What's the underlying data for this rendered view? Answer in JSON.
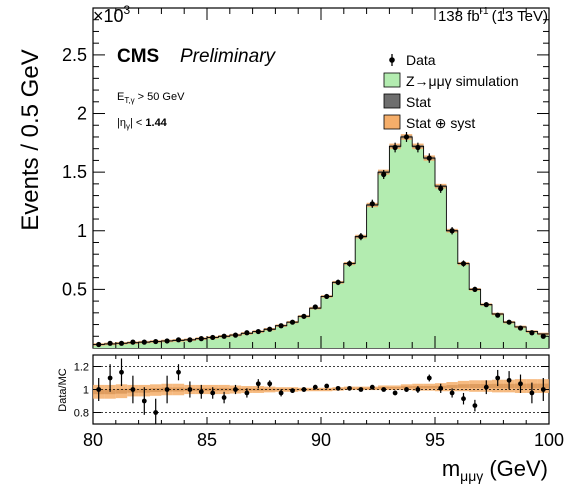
{
  "chart_data": [
    {
      "type": "histogram",
      "title": "",
      "header_left": "CMS",
      "header_status": "Preliminary",
      "luminosity_number": "138 fb",
      "luminosity_exponent": "-1",
      "luminosity_energy": "(13 TeV)",
      "ylabel": "Events / 0.5 GeV",
      "y_multiplier_base": "×10",
      "y_multiplier_exponent": "3",
      "xlabel_main": "m",
      "xlabel_sub": "μμγ",
      "xlabel_unit": "(GeV)",
      "xlim": [
        80,
        100
      ],
      "ylim": [
        0,
        2.9
      ],
      "y_tick_labels": [
        "0.5",
        "1",
        "1.5",
        "2",
        "2.5"
      ],
      "y_tick_values": [
        0.5,
        1.0,
        1.5,
        2.0,
        2.5
      ],
      "x_tick_labels": [
        "80",
        "85",
        "90",
        "95",
        "100"
      ],
      "x_tick_values": [
        80,
        85,
        90,
        95,
        100
      ],
      "selection_cut_1": "E_T,γ > 50 GeV",
      "selection_cut_2": "|η_γ| < 1.44",
      "legend": {
        "placement": "top-right",
        "entries": [
          {
            "name": "Data",
            "kind": "marker",
            "color": "#000000"
          },
          {
            "name": "Z→μμγ simulation",
            "kind": "fill",
            "color": "#b3ecb0"
          },
          {
            "name": "Stat",
            "kind": "fill",
            "color": "#6e6e6e"
          },
          {
            "name": "Stat ⊕ syst",
            "kind": "fill",
            "color": "#f5ae6a"
          }
        ]
      },
      "bin_width": 0.5,
      "bin_edges_start": 80,
      "mc_values": [
        0.03,
        0.035,
        0.04,
        0.045,
        0.05,
        0.055,
        0.06,
        0.065,
        0.07,
        0.08,
        0.09,
        0.1,
        0.11,
        0.125,
        0.14,
        0.16,
        0.19,
        0.22,
        0.27,
        0.34,
        0.44,
        0.56,
        0.72,
        0.95,
        1.22,
        1.5,
        1.72,
        1.8,
        1.72,
        1.62,
        1.38,
        1.0,
        0.72,
        0.5,
        0.37,
        0.29,
        0.22,
        0.18,
        0.14,
        0.12
      ],
      "data_values": [
        0.03,
        0.04,
        0.04,
        0.05,
        0.05,
        0.055,
        0.06,
        0.07,
        0.07,
        0.08,
        0.09,
        0.1,
        0.11,
        0.13,
        0.14,
        0.16,
        0.19,
        0.22,
        0.27,
        0.35,
        0.44,
        0.56,
        0.72,
        0.95,
        1.23,
        1.48,
        1.71,
        1.8,
        1.71,
        1.62,
        1.36,
        1.0,
        0.72,
        0.5,
        0.37,
        0.28,
        0.22,
        0.17,
        0.13,
        0.1
      ],
      "fill_color": "#b3ecb0",
      "stat_color": "#6e6e6e",
      "syst_color": "#f5ae6a"
    },
    {
      "type": "ratio",
      "ylabel": "Data/MC",
      "ylim": [
        0.7,
        1.3
      ],
      "y_tick_labels": [
        "0.8",
        "1",
        "1.2"
      ],
      "y_tick_values": [
        0.8,
        1.0,
        1.2
      ],
      "reference_lines": [
        0.8,
        1.0,
        1.2
      ],
      "x": [
        80.25,
        80.75,
        81.25,
        81.75,
        82.25,
        82.75,
        83.25,
        83.75,
        84.25,
        84.75,
        85.25,
        85.75,
        86.25,
        86.75,
        87.25,
        87.75,
        88.25,
        88.75,
        89.25,
        89.75,
        90.25,
        90.75,
        91.25,
        91.75,
        92.25,
        92.75,
        93.25,
        93.75,
        94.25,
        94.75,
        95.25,
        95.75,
        96.25,
        96.75,
        97.25,
        97.75,
        98.25,
        98.75,
        99.25,
        99.75
      ],
      "ratio_values": [
        1.0,
        1.1,
        1.15,
        1.0,
        0.9,
        0.8,
        1.0,
        1.15,
        1.0,
        0.98,
        0.97,
        0.93,
        1.0,
        0.97,
        1.05,
        1.05,
        0.97,
        0.99,
        1.0,
        1.02,
        1.03,
        1.01,
        1.01,
        1.0,
        1.02,
        1.0,
        0.97,
        1.0,
        1.0,
        1.1,
        1.01,
        0.97,
        0.92,
        0.86,
        1.02,
        1.1,
        1.08,
        1.05,
        0.97,
        1.0
      ],
      "ratio_errors": [
        0.1,
        0.12,
        0.12,
        0.12,
        0.12,
        0.12,
        0.12,
        0.07,
        0.07,
        0.06,
        0.05,
        0.05,
        0.04,
        0.04,
        0.04,
        0.03,
        0.03,
        0.02,
        0.02,
        0.02,
        0.01,
        0.01,
        0.01,
        0.01,
        0.01,
        0.01,
        0.02,
        0.02,
        0.03,
        0.03,
        0.04,
        0.04,
        0.05,
        0.05,
        0.06,
        0.07,
        0.08,
        0.08,
        0.09,
        0.1
      ],
      "band_half_width": [
        0.06,
        0.06,
        0.06,
        0.05,
        0.05,
        0.05,
        0.05,
        0.05,
        0.04,
        0.04,
        0.04,
        0.04,
        0.035,
        0.03,
        0.03,
        0.025,
        0.02,
        0.02,
        0.015,
        0.015,
        0.015,
        0.015,
        0.015,
        0.015,
        0.015,
        0.02,
        0.02,
        0.025,
        0.03,
        0.03,
        0.035,
        0.04,
        0.045,
        0.05,
        0.05,
        0.055,
        0.055,
        0.06,
        0.06,
        0.06
      ],
      "band_offset": [
        -0.02,
        -0.02,
        -0.015,
        -0.01,
        -0.01,
        -0.005,
        0.0,
        0.0,
        0.0,
        0.0,
        0.0,
        0.0,
        0.0,
        0.0,
        0.0,
        0.0,
        0.0,
        0.0,
        0.0,
        0.0,
        0.0,
        0.005,
        0.01,
        0.01,
        0.01,
        0.015,
        0.015,
        0.02,
        0.02,
        0.02,
        0.02,
        0.025,
        0.03,
        0.03,
        0.03,
        0.03,
        0.03,
        0.03,
        0.03,
        0.03
      ]
    }
  ]
}
